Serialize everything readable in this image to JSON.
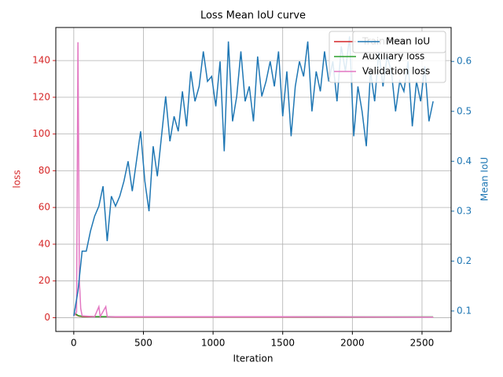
{
  "chart_data": {
    "type": "line",
    "title": "Loss Mean IoU curve",
    "x_label": "Iteration",
    "y_label": "loss",
    "y2_label": "Mean IoU",
    "xlim": [
      -129,
      2709
    ],
    "xticks": [
      0,
      500,
      1000,
      1500,
      2000,
      2500
    ],
    "ylim": [
      -7.5,
      158
    ],
    "yticks": [
      0,
      20,
      40,
      60,
      80,
      100,
      120,
      140
    ],
    "y2lim": [
      0.059,
      0.668
    ],
    "y2ticks": [
      0.1,
      0.2,
      0.3,
      0.4,
      0.5,
      0.6
    ],
    "grid": true,
    "legend": "upper right",
    "series": [
      {
        "name": "Train loss",
        "color": "#d62728",
        "x": [
          0,
          20,
          30,
          40,
          50,
          60,
          100,
          150,
          180,
          190,
          230,
          240,
          300,
          500,
          1000,
          1500,
          2000,
          2580
        ],
        "values": [
          2,
          1.5,
          1,
          0.8,
          0.7,
          0.6,
          0.5,
          0.5,
          0.5,
          0.5,
          0.5,
          0.5,
          0.4,
          0.4,
          0.4,
          0.4,
          0.3,
          0.3
        ]
      },
      {
        "name": "Auxiliary loss",
        "color": "#2ca02c",
        "x": [
          0,
          20,
          30,
          40,
          50,
          60,
          100,
          150,
          180,
          190,
          230,
          240,
          300,
          500,
          1000,
          1500,
          2000,
          2580
        ],
        "values": [
          2.5,
          1.8,
          1.2,
          1,
          0.9,
          0.8,
          0.7,
          0.6,
          0.6,
          0.6,
          0.6,
          0.6,
          0.5,
          0.5,
          0.5,
          0.5,
          0.4,
          0.4
        ]
      },
      {
        "name": "Validation loss",
        "color": "#e377c2",
        "x": [
          0,
          20,
          30,
          40,
          50,
          60,
          100,
          150,
          180,
          190,
          230,
          240,
          300,
          500,
          1000,
          1500,
          2000,
          2580
        ],
        "values": [
          1,
          3,
          150,
          20,
          5,
          1,
          0.8,
          0.6,
          6,
          0.6,
          6,
          0.6,
          0.5,
          0.5,
          0.5,
          0.5,
          0.4,
          0.3
        ]
      },
      {
        "name": "Mean IoU",
        "color": "#1f77b4",
        "axis": "y2",
        "x": [
          0,
          30,
          60,
          90,
          120,
          150,
          180,
          210,
          240,
          270,
          300,
          330,
          360,
          390,
          420,
          450,
          480,
          510,
          540,
          570,
          600,
          630,
          660,
          690,
          720,
          750,
          780,
          810,
          840,
          870,
          900,
          930,
          960,
          990,
          1020,
          1050,
          1080,
          1110,
          1140,
          1170,
          1200,
          1230,
          1260,
          1290,
          1320,
          1350,
          1380,
          1410,
          1440,
          1470,
          1500,
          1530,
          1560,
          1590,
          1620,
          1650,
          1680,
          1710,
          1740,
          1770,
          1800,
          1830,
          1860,
          1890,
          1920,
          1950,
          1980,
          2010,
          2040,
          2070,
          2100,
          2130,
          2160,
          2190,
          2220,
          2250,
          2280,
          2310,
          2340,
          2370,
          2400,
          2430,
          2460,
          2490,
          2520,
          2550,
          2580
        ],
        "values": [
          0.09,
          0.14,
          0.22,
          0.22,
          0.26,
          0.29,
          0.31,
          0.35,
          0.24,
          0.33,
          0.31,
          0.33,
          0.36,
          0.4,
          0.34,
          0.4,
          0.46,
          0.36,
          0.3,
          0.43,
          0.37,
          0.45,
          0.53,
          0.44,
          0.49,
          0.46,
          0.54,
          0.47,
          0.58,
          0.52,
          0.55,
          0.62,
          0.56,
          0.57,
          0.51,
          0.6,
          0.42,
          0.64,
          0.48,
          0.53,
          0.62,
          0.52,
          0.55,
          0.48,
          0.61,
          0.53,
          0.56,
          0.6,
          0.55,
          0.62,
          0.49,
          0.58,
          0.45,
          0.55,
          0.6,
          0.57,
          0.64,
          0.5,
          0.58,
          0.54,
          0.62,
          0.56,
          0.6,
          0.52,
          0.63,
          0.58,
          0.65,
          0.45,
          0.55,
          0.5,
          0.43,
          0.58,
          0.52,
          0.62,
          0.55,
          0.61,
          0.58,
          0.5,
          0.56,
          0.54,
          0.6,
          0.47,
          0.56,
          0.52,
          0.59,
          0.48,
          0.52
        ]
      }
    ]
  }
}
